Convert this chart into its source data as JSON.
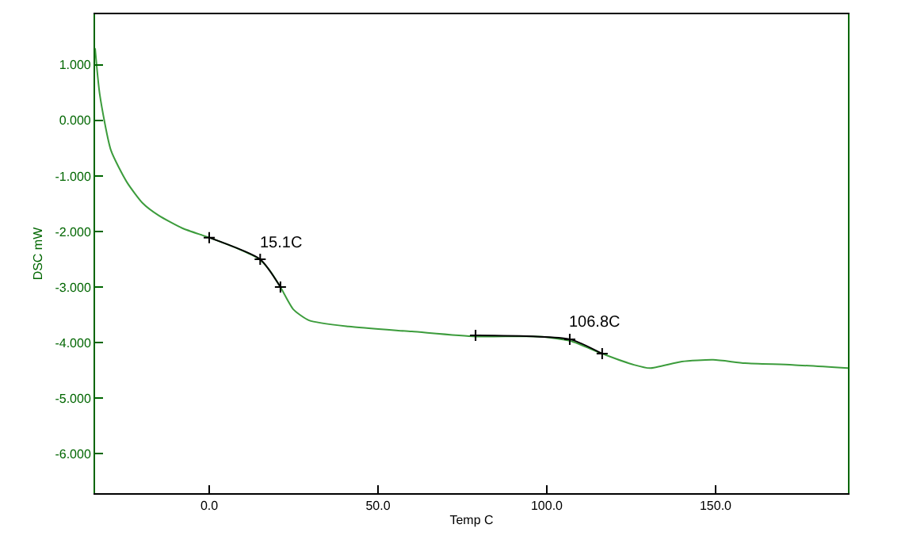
{
  "chart_data": {
    "type": "line",
    "xlabel": "Temp C",
    "ylabel": "DSC mW",
    "xlim": [
      -33.8,
      189.2
    ],
    "ylim": [
      -6.71,
      1.91
    ],
    "xticks": [
      {
        "value": 0,
        "label": "0.0"
      },
      {
        "value": 50,
        "label": "50.0"
      },
      {
        "value": 100,
        "label": "100.0"
      },
      {
        "value": 150,
        "label": "150.0"
      }
    ],
    "yticks": [
      {
        "value": 1,
        "label": "1.000"
      },
      {
        "value": 0,
        "label": "0.000"
      },
      {
        "value": -1,
        "label": "-1.000"
      },
      {
        "value": -2,
        "label": "-2.000"
      },
      {
        "value": -3,
        "label": "-3.000"
      },
      {
        "value": -4,
        "label": "-4.000"
      },
      {
        "value": -5,
        "label": "-5.000"
      },
      {
        "value": -6,
        "label": "-6.000"
      }
    ],
    "series": [
      {
        "color": "#3c9c3c",
        "marker": "none",
        "x": [
          -33.8,
          -32.4,
          -29.1,
          -24.4,
          -19.7,
          -15,
          -8,
          0,
          8.5,
          14.6,
          17.8,
          21.1,
          24.9,
          29.6,
          41.3,
          60,
          78.9,
          97.7,
          107,
          116.4,
          125.8,
          130.5,
          140,
          149.3,
          158.7,
          172.8,
          189.2
        ],
        "values": [
          1.3,
          0.46,
          -0.54,
          -1.11,
          -1.49,
          -1.71,
          -1.94,
          -2.11,
          -2.31,
          -2.49,
          -2.69,
          -3.0,
          -3.4,
          -3.6,
          -3.71,
          -3.8,
          -3.89,
          -3.89,
          -3.97,
          -4.2,
          -4.4,
          -4.46,
          -4.34,
          -4.31,
          -4.37,
          -4.4,
          -4.46
        ]
      },
      {
        "color": "#000000",
        "marker": "cross",
        "x": [
          0,
          15.1,
          21.1,
          null,
          78.9,
          106.8,
          116.4
        ],
        "values": [
          -2.11,
          -2.5,
          -3.0,
          null,
          -3.87,
          -3.94,
          -4.2
        ]
      }
    ],
    "annotations": [
      {
        "text": "15.1C",
        "x": 15.1,
        "y": -2.5
      },
      {
        "text": "106.8C",
        "x": 106.8,
        "y": -3.94
      }
    ]
  }
}
